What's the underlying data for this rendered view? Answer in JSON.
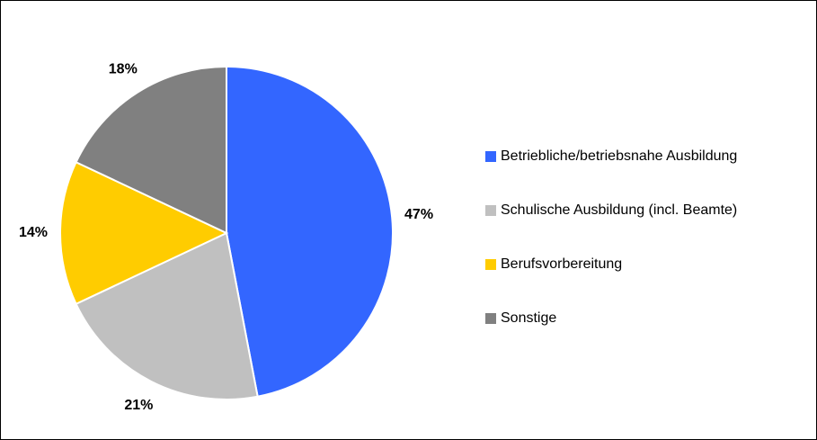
{
  "chart_data": {
    "type": "pie",
    "categories": [
      "Betriebliche/betriebsnahe Ausbildung",
      "Schulische Ausbildung (incl. Beamte)",
      "Berufsvorbereitung",
      "Sonstige"
    ],
    "values": [
      47,
      21,
      14,
      18
    ],
    "value_labels": [
      "47%",
      "21%",
      "14%",
      "18%"
    ],
    "colors": [
      "#3366ff",
      "#c0c0c0",
      "#ffcc00",
      "#808080"
    ],
    "legend": "right"
  }
}
